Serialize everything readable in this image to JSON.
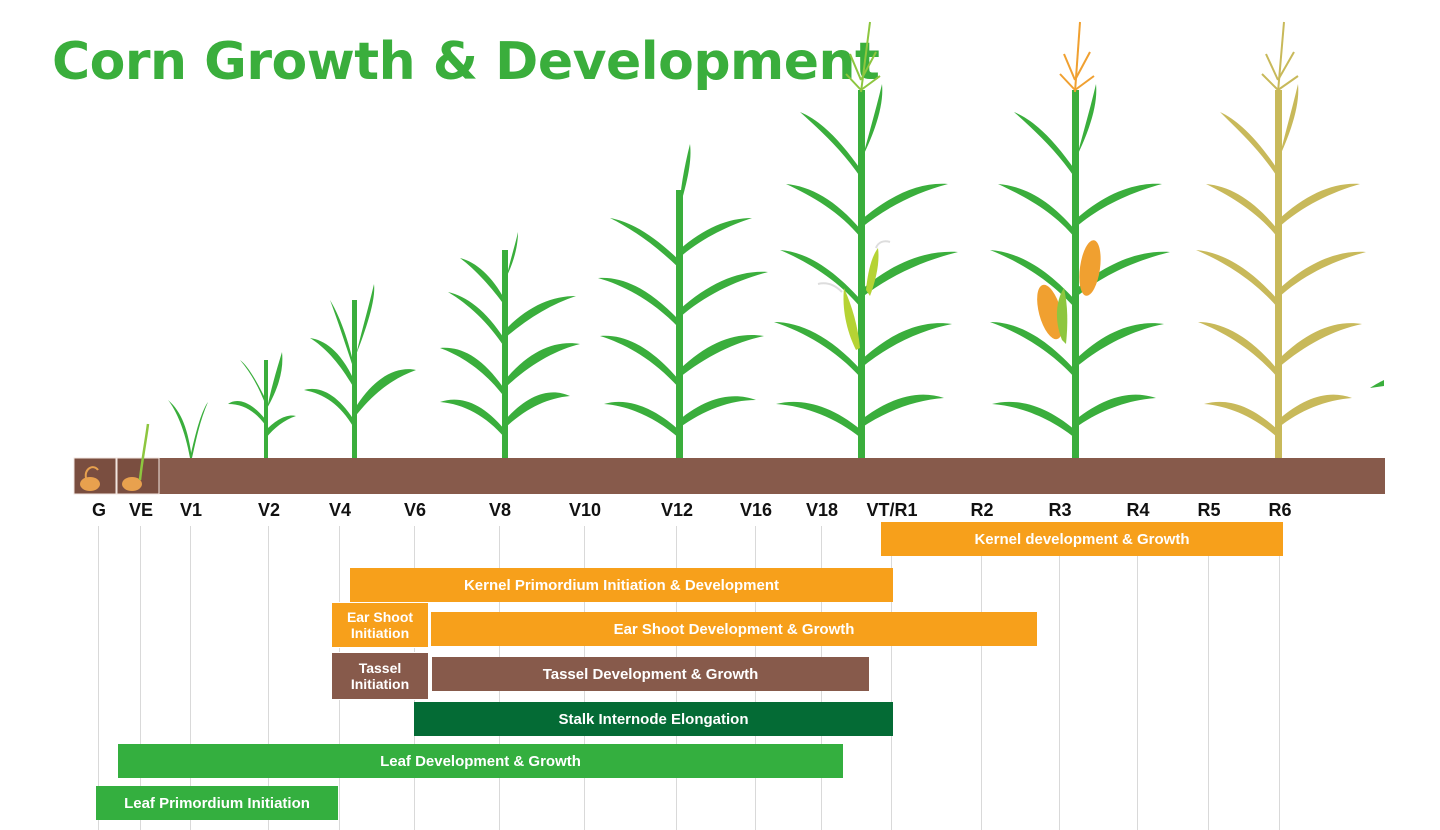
{
  "title": "Corn Growth & Development",
  "colors": {
    "title": "#3aae3c",
    "soil": "#875a4b",
    "orange": "#f7a01b",
    "brown": "#875a4b",
    "dark_green": "#046b35",
    "green": "#34af3f",
    "plant_green": "#3aae3c",
    "dry_plant": "#c8b95a"
  },
  "stages": [
    "G",
    "VE",
    "V1",
    "V2",
    "V4",
    "V6",
    "V8",
    "V10",
    "V12",
    "V16",
    "V18",
    "VT/R1",
    "R2",
    "R3",
    "R4",
    "R5",
    "R6"
  ],
  "processes": {
    "kernel_dev": "Kernel development & Growth",
    "kernel_primordium": "Kernel Primordium Initiation & Development",
    "ear_shoot_init": "Ear Shoot Initiation",
    "ear_shoot_dev": "Ear Shoot Development & Growth",
    "tassel_init": "Tassel Initiation",
    "tassel_dev": "Tassel Development & Growth",
    "stalk": "Stalk Internode Elongation",
    "leaf_dev": "Leaf Development & Growth",
    "leaf_primordium": "Leaf Primordium Initiation"
  }
}
